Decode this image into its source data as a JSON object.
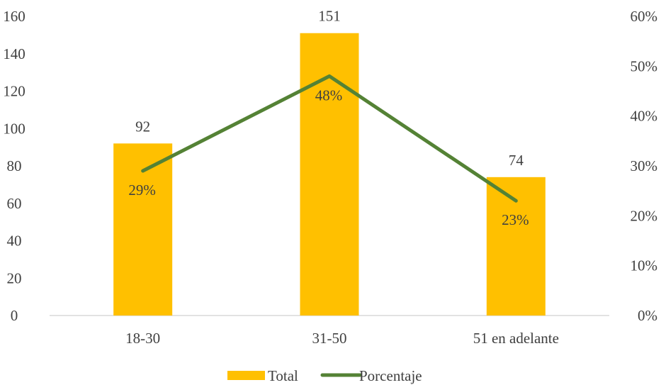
{
  "chart_data": {
    "type": "bar",
    "categories": [
      "18-30",
      "31-50",
      "51 en adelante"
    ],
    "series": [
      {
        "name": "Total",
        "type": "bar",
        "axis": "left",
        "values": [
          92,
          151,
          74
        ],
        "labels": [
          "92",
          "151",
          "74"
        ],
        "color": "#FFC000"
      },
      {
        "name": "Porcentaje",
        "type": "line",
        "axis": "right",
        "values": [
          0.29,
          0.48,
          0.23
        ],
        "labels": [
          "29%",
          "48%",
          "23%"
        ],
        "color": "#548235"
      }
    ],
    "y_left": {
      "min": 0,
      "max": 160,
      "ticks": [
        "0",
        "20",
        "40",
        "60",
        "80",
        "100",
        "120",
        "140",
        "160"
      ]
    },
    "y_right": {
      "min": 0,
      "max": 0.6,
      "ticks": [
        "0%",
        "10%",
        "20%",
        "30%",
        "40%",
        "50%",
        "60%"
      ]
    },
    "grid": false,
    "legend_position": "bottom",
    "title": "",
    "xlabel": "",
    "ylabel": ""
  }
}
